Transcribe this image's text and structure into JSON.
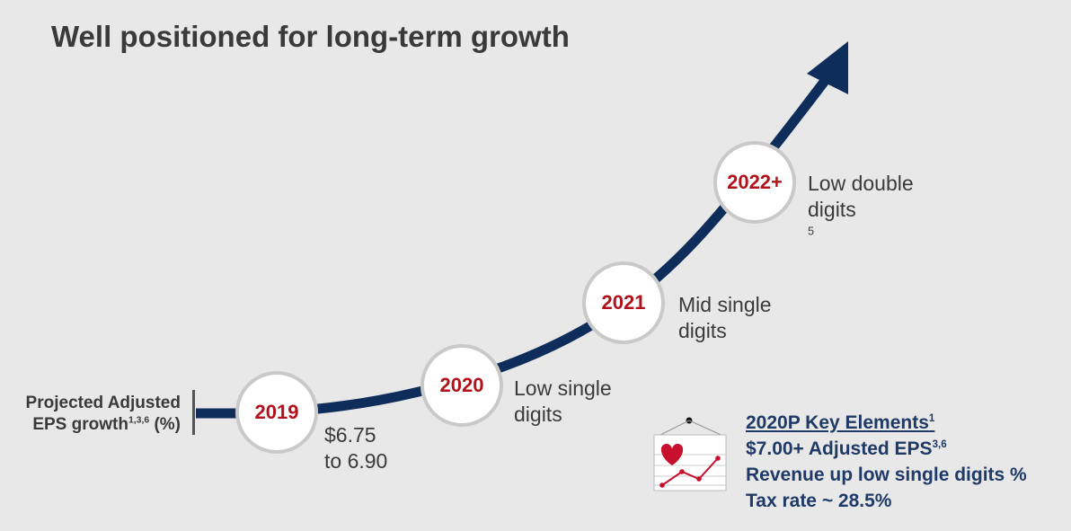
{
  "title": "Well positioned for long-term growth",
  "ylabel": {
    "line1": "Projected Adjusted",
    "line2_text": "EPS growth",
    "line2_sup": "1,3,6",
    "line2_suffix": " (%)"
  },
  "milestones": [
    {
      "year": "2019",
      "line1": "$6.75",
      "line2": "to 6.90",
      "sup": ""
    },
    {
      "year": "2020",
      "line1": "Low single",
      "line2": "digits",
      "sup": ""
    },
    {
      "year": "2021",
      "line1": "Mid single",
      "line2": "digits",
      "sup": ""
    },
    {
      "year": "2022+",
      "line1": "Low double",
      "line2": "digits",
      "sup": "5"
    }
  ],
  "key_elements": {
    "heading": "2020P Key Elements",
    "heading_sup": "1",
    "items": [
      {
        "text": "$7.00+ Adjusted EPS",
        "sup": "3,6"
      },
      {
        "text": "Revenue up low single digits %",
        "sup": ""
      },
      {
        "text": "Tax rate ~ 28.5%",
        "sup": ""
      }
    ]
  },
  "icons": {
    "arrow": "growth-arrow-icon",
    "board": "heart-chart-board-icon"
  },
  "colors": {
    "curve": "#0f2d5a",
    "year": "#b3121b",
    "key_text": "#1f3a66",
    "background": "#e8e8e8"
  }
}
